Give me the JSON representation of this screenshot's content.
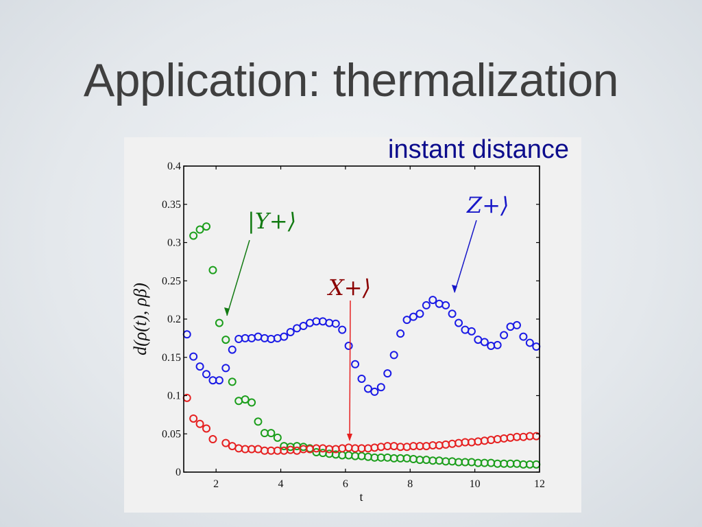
{
  "slide": {
    "title": "Application: thermalization",
    "caption": "instant distance"
  },
  "colors": {
    "title": "#3f3f3f",
    "caption": "#0c0c8c",
    "z_series": "#1a1ae6",
    "y_series": "#1b9e1b",
    "x_series": "#e62020",
    "x_annotation": "#8b0000",
    "y_annotation": "#127a12",
    "z_annotation": "#1717c8"
  },
  "chart_data": {
    "type": "scatter",
    "xlabel": "t",
    "ylabel": "d(ρ(t), ρβ)",
    "xlim": [
      1,
      12
    ],
    "ylim": [
      0,
      0.4
    ],
    "xticks": [
      2,
      4,
      6,
      8,
      10,
      12
    ],
    "yticks": [
      0,
      0.05,
      0.1,
      0.15,
      0.2,
      0.25,
      0.3,
      0.35,
      0.4
    ],
    "grid": false,
    "marker": "open-circle",
    "annotations": [
      {
        "text": "|Y+⟩",
        "series": "Y"
      },
      {
        "text": "X+⟩",
        "series": "X"
      },
      {
        "text": "Z+⟩",
        "series": "Z"
      }
    ],
    "series": [
      {
        "color": "#1a1ae6",
        "x": [
          1.1,
          1.3,
          1.5,
          1.7,
          1.9,
          2.1,
          2.3,
          2.5,
          2.7,
          2.9,
          3.1,
          3.3,
          3.5,
          3.7,
          3.9,
          4.1,
          4.3,
          4.5,
          4.7,
          4.9,
          5.1,
          5.3,
          5.5,
          5.7,
          5.9,
          6.1,
          6.3,
          6.5,
          6.7,
          6.9,
          7.1,
          7.3,
          7.5,
          7.7,
          7.9,
          8.1,
          8.3,
          8.5,
          8.7,
          8.9,
          9.1,
          9.3,
          9.5,
          9.7,
          9.9,
          10.1,
          10.3,
          10.5,
          10.7,
          10.9,
          11.1,
          11.3,
          11.5,
          11.7,
          11.9
        ],
        "y": [
          0.18,
          0.151,
          0.138,
          0.128,
          0.12,
          0.12,
          0.136,
          0.16,
          0.174,
          0.175,
          0.175,
          0.177,
          0.175,
          0.174,
          0.175,
          0.177,
          0.183,
          0.188,
          0.191,
          0.195,
          0.197,
          0.197,
          0.195,
          0.194,
          0.186,
          0.165,
          0.141,
          0.122,
          0.109,
          0.105,
          0.111,
          0.129,
          0.153,
          0.181,
          0.199,
          0.203,
          0.207,
          0.218,
          0.225,
          0.22,
          0.218,
          0.207,
          0.195,
          0.186,
          0.184,
          0.173,
          0.17,
          0.165,
          0.166,
          0.179,
          0.19,
          0.192,
          0.177,
          0.169,
          0.164
        ]
      },
      {
        "color": "#1b9e1b",
        "x": [
          1.3,
          1.5,
          1.7,
          1.9,
          2.1,
          2.3,
          2.5,
          2.7,
          2.9,
          3.1,
          3.3,
          3.5,
          3.7,
          3.9,
          4.1,
          4.3,
          4.5,
          4.7,
          4.9,
          5.1,
          5.3,
          5.5,
          5.7,
          5.9,
          6.1,
          6.3,
          6.5,
          6.7,
          6.9,
          7.1,
          7.3,
          7.5,
          7.7,
          7.9,
          8.1,
          8.3,
          8.5,
          8.7,
          8.9,
          9.1,
          9.3,
          9.5,
          9.7,
          9.9,
          10.1,
          10.3,
          10.5,
          10.7,
          10.9,
          11.1,
          11.3,
          11.5,
          11.7,
          11.9
        ],
        "y": [
          0.309,
          0.317,
          0.321,
          0.264,
          0.195,
          0.173,
          0.118,
          0.093,
          0.095,
          0.091,
          0.066,
          0.051,
          0.051,
          0.045,
          0.034,
          0.033,
          0.034,
          0.033,
          0.031,
          0.026,
          0.025,
          0.024,
          0.023,
          0.022,
          0.022,
          0.021,
          0.021,
          0.02,
          0.019,
          0.019,
          0.019,
          0.018,
          0.018,
          0.018,
          0.017,
          0.016,
          0.016,
          0.015,
          0.015,
          0.014,
          0.014,
          0.013,
          0.013,
          0.013,
          0.012,
          0.012,
          0.012,
          0.011,
          0.011,
          0.011,
          0.011,
          0.01,
          0.01,
          0.01
        ]
      },
      {
        "color": "#e62020",
        "x": [
          1.1,
          1.3,
          1.5,
          1.7,
          1.9,
          2.3,
          2.5,
          2.7,
          2.9,
          3.1,
          3.3,
          3.5,
          3.7,
          3.9,
          4.1,
          4.3,
          4.5,
          4.7,
          4.9,
          5.1,
          5.3,
          5.5,
          5.7,
          5.9,
          6.1,
          6.3,
          6.5,
          6.7,
          6.9,
          7.1,
          7.3,
          7.5,
          7.7,
          7.9,
          8.1,
          8.3,
          8.5,
          8.7,
          8.9,
          9.1,
          9.3,
          9.5,
          9.7,
          9.9,
          10.1,
          10.3,
          10.5,
          10.7,
          10.9,
          11.1,
          11.3,
          11.5,
          11.7,
          11.9
        ],
        "y": [
          0.097,
          0.07,
          0.063,
          0.057,
          0.043,
          0.038,
          0.034,
          0.031,
          0.03,
          0.03,
          0.03,
          0.028,
          0.028,
          0.028,
          0.028,
          0.029,
          0.028,
          0.03,
          0.03,
          0.031,
          0.031,
          0.03,
          0.03,
          0.031,
          0.032,
          0.031,
          0.031,
          0.031,
          0.032,
          0.033,
          0.034,
          0.034,
          0.033,
          0.033,
          0.034,
          0.034,
          0.034,
          0.035,
          0.035,
          0.036,
          0.037,
          0.038,
          0.039,
          0.039,
          0.04,
          0.041,
          0.042,
          0.043,
          0.044,
          0.045,
          0.046,
          0.046,
          0.047,
          0.047
        ]
      }
    ]
  }
}
